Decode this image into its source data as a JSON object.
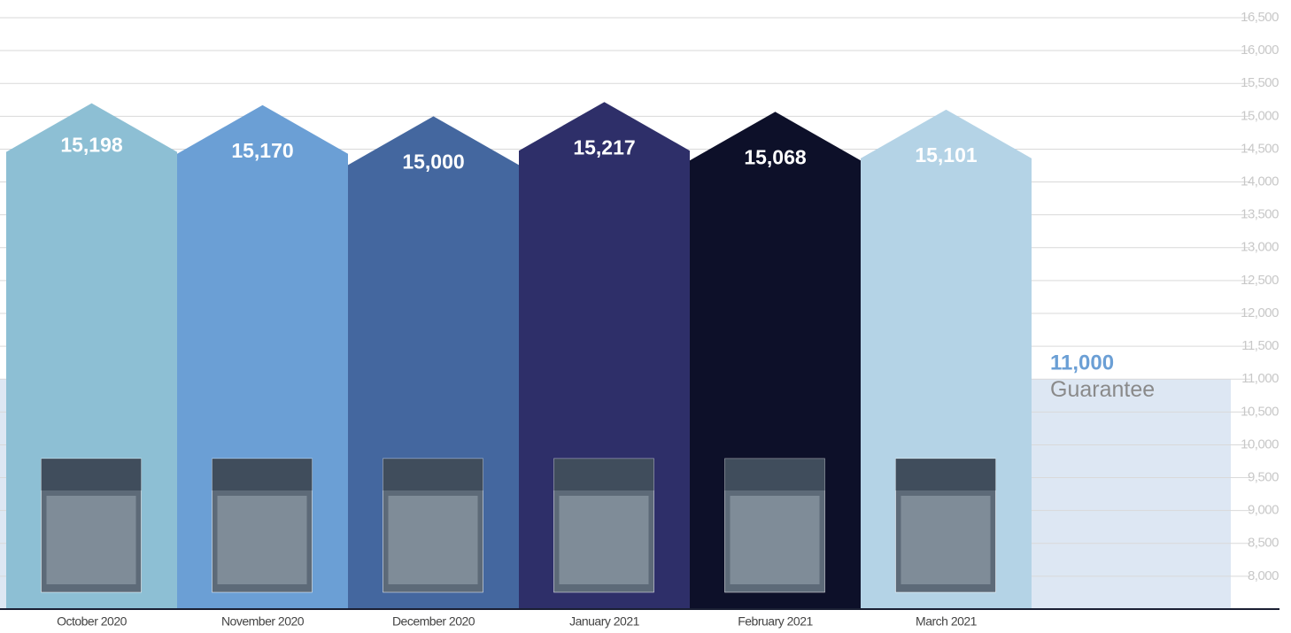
{
  "chart_data": {
    "type": "house-bar",
    "categories": [
      "October 2020",
      "November 2020",
      "December 2020",
      "January 2021",
      "February 2021",
      "March 2021"
    ],
    "values": [
      15198,
      15170,
      15000,
      15217,
      15068,
      15101
    ],
    "value_labels": [
      "15,198",
      "15,170",
      "15,000",
      "15,217",
      "15,068",
      "15,101"
    ],
    "colors": [
      "#8dbfd4",
      "#6b9fd5",
      "#44679f",
      "#2e2f69",
      "#0d1029",
      "#b4d3e6"
    ],
    "ylim": [
      7500,
      16500
    ],
    "yticks": [
      {
        "value": 8000,
        "label": "8,000"
      },
      {
        "value": 8500,
        "label": "8,500"
      },
      {
        "value": 9000,
        "label": "9,000"
      },
      {
        "value": 9500,
        "label": "9,500"
      },
      {
        "value": 10000,
        "label": "10,000"
      },
      {
        "value": 10500,
        "label": "10,500"
      },
      {
        "value": 11000,
        "label": "11,000"
      },
      {
        "value": 11500,
        "label": "11,500"
      },
      {
        "value": 12000,
        "label": "12,000"
      },
      {
        "value": 12500,
        "label": "12,500"
      },
      {
        "value": 13000,
        "label": "13,000"
      },
      {
        "value": 13500,
        "label": "13,500"
      },
      {
        "value": 14000,
        "label": "14,000"
      },
      {
        "value": 14500,
        "label": "14,500"
      },
      {
        "value": 15000,
        "label": "15,000"
      },
      {
        "value": 15500,
        "label": "15,500"
      },
      {
        "value": 16000,
        "label": "16,000"
      },
      {
        "value": 16500,
        "label": "16,500"
      }
    ],
    "grid": true,
    "guarantee": {
      "value": 11000,
      "label": "11,000",
      "text": "Guarantee",
      "color": "#dde7f3"
    }
  }
}
